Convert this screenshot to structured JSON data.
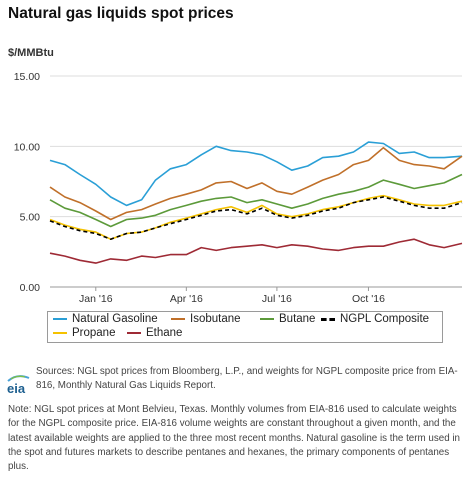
{
  "title": "Natural gas liquids spot prices",
  "unit": "$/MMBtu",
  "colors": {
    "natural_gasoline": "#2a9fd6",
    "isobutane": "#c0702a",
    "butane": "#5c9a3a",
    "ngpl_composite": "#000000",
    "propane": "#f5c200",
    "ethane": "#9e2a35",
    "grid": "#dddddd"
  },
  "chart_data": {
    "type": "line",
    "title": "Natural gas liquids spot prices",
    "ylabel": "$/MMBtu",
    "xlabel": "",
    "ylim": [
      0,
      15
    ],
    "xlim": [
      "2015-11-16",
      "2017-01-03"
    ],
    "yticks": [
      "0.00",
      "5.00",
      "10.00",
      "15.00"
    ],
    "xticks": [
      {
        "date": "2016-01-01",
        "label": "Jan '16"
      },
      {
        "date": "2016-04-01",
        "label": "Apr '16"
      },
      {
        "date": "2016-07-01",
        "label": "Jul '16"
      },
      {
        "date": "2016-10-01",
        "label": "Oct '16"
      }
    ],
    "grid": true,
    "legend": "below",
    "x": [
      "2015-11-16",
      "2015-12-01",
      "2015-12-16",
      "2016-01-01",
      "2016-01-16",
      "2016-02-01",
      "2016-02-16",
      "2016-03-01",
      "2016-03-16",
      "2016-04-01",
      "2016-04-16",
      "2016-05-01",
      "2016-05-16",
      "2016-06-01",
      "2016-06-16",
      "2016-07-01",
      "2016-07-16",
      "2016-08-01",
      "2016-08-16",
      "2016-09-01",
      "2016-09-16",
      "2016-10-01",
      "2016-10-16",
      "2016-11-01",
      "2016-11-16",
      "2016-12-01",
      "2016-12-16",
      "2017-01-03"
    ],
    "series": [
      {
        "name": "Natural Gasoline",
        "key": "natural_gasoline",
        "dash": "",
        "values": [
          9.0,
          8.7,
          8.0,
          7.3,
          6.4,
          5.8,
          6.2,
          7.6,
          8.4,
          8.7,
          9.4,
          10.0,
          9.7,
          9.6,
          9.4,
          8.9,
          8.3,
          8.6,
          9.2,
          9.3,
          9.6,
          10.3,
          10.2,
          9.5,
          9.6,
          9.2,
          9.2,
          9.3
        ]
      },
      {
        "name": "Isobutane",
        "key": "isobutane",
        "dash": "",
        "values": [
          7.1,
          6.4,
          6.0,
          5.4,
          4.8,
          5.3,
          5.5,
          5.9,
          6.3,
          6.6,
          6.9,
          7.4,
          7.5,
          7.0,
          7.4,
          6.8,
          6.6,
          7.1,
          7.6,
          8.0,
          8.7,
          9.0,
          9.9,
          9.0,
          8.7,
          8.6,
          8.4,
          9.3
        ]
      },
      {
        "name": "Butane",
        "key": "butane",
        "dash": "",
        "values": [
          6.2,
          5.6,
          5.3,
          4.8,
          4.3,
          4.8,
          4.9,
          5.1,
          5.5,
          5.8,
          6.1,
          6.3,
          6.4,
          6.0,
          6.2,
          5.9,
          5.6,
          5.9,
          6.3,
          6.6,
          6.8,
          7.1,
          7.6,
          7.3,
          7.0,
          7.2,
          7.4,
          8.0
        ]
      },
      {
        "name": "NGPL Composite",
        "key": "ngpl_composite",
        "dash": "4,3",
        "values": [
          4.7,
          4.3,
          4.0,
          3.8,
          3.4,
          3.8,
          3.9,
          4.2,
          4.5,
          4.8,
          5.1,
          5.4,
          5.5,
          5.2,
          5.6,
          5.1,
          4.9,
          5.1,
          5.4,
          5.6,
          6.0,
          6.2,
          6.4,
          6.1,
          5.8,
          5.6,
          5.6,
          6.0
        ]
      },
      {
        "name": "Propane",
        "key": "propane",
        "dash": "",
        "values": [
          4.8,
          4.4,
          4.1,
          3.9,
          3.4,
          3.8,
          3.9,
          4.2,
          4.6,
          4.9,
          5.2,
          5.5,
          5.7,
          5.3,
          5.8,
          5.2,
          5.0,
          5.2,
          5.5,
          5.7,
          6.0,
          6.3,
          6.5,
          6.2,
          5.9,
          5.8,
          5.8,
          6.1
        ]
      },
      {
        "name": "Ethane",
        "key": "ethane",
        "dash": "",
        "values": [
          2.4,
          2.2,
          1.9,
          1.7,
          2.0,
          1.9,
          2.2,
          2.1,
          2.3,
          2.3,
          2.8,
          2.6,
          2.8,
          2.9,
          3.0,
          2.8,
          3.0,
          2.9,
          2.7,
          2.6,
          2.8,
          2.9,
          2.9,
          3.2,
          3.4,
          3.0,
          2.8,
          3.1
        ]
      }
    ]
  },
  "legend": [
    {
      "key": "natural_gasoline",
      "label": "Natural Gasoline"
    },
    {
      "key": "isobutane",
      "label": "Isobutane"
    },
    {
      "key": "butane",
      "label": "Butane"
    },
    {
      "key": "ngpl_composite",
      "label": "NGPL Composite"
    },
    {
      "key": "propane",
      "label": "Propane"
    },
    {
      "key": "ethane",
      "label": "Ethane"
    }
  ],
  "logo_text": "eia",
  "sources": "Sources: NGL spot prices from Bloomberg, L.P., and weights for NGPL composite price from EIA-816, Monthly Natural Gas Liquids Report.",
  "note": "Note: NGL spot prices at Mont Belvieu, Texas. Monthly volumes from EIA-816 used to calculate weights for the NGPL composite price. EIA-816 volume weights are constant throughout a given month, and the latest available weights are applied to the three most recent months. Natural gasoline is the term used in the spot and futures markets to describe pentanes and hexanes, the primary components of pentanes plus."
}
